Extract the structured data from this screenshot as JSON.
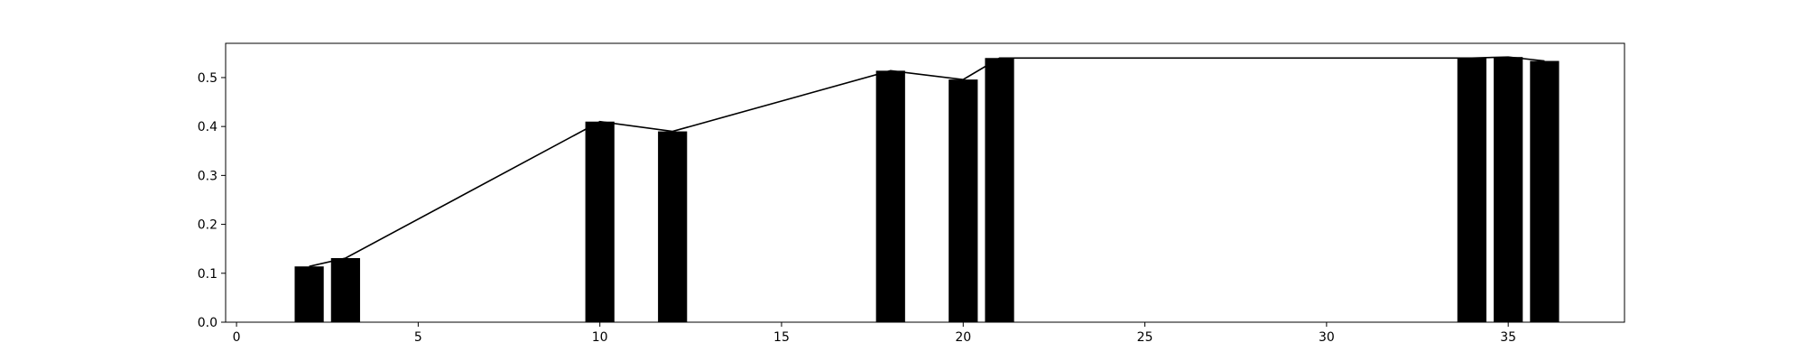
{
  "chart_data": {
    "type": "bar",
    "title": "",
    "xlabel": "",
    "ylabel": "",
    "xlim": [
      -0.3,
      38.2
    ],
    "ylim": [
      0,
      0.57
    ],
    "xticks": [
      0,
      5,
      10,
      15,
      20,
      25,
      30,
      35
    ],
    "yticks": [
      0.0,
      0.1,
      0.2,
      0.3,
      0.4,
      0.5
    ],
    "ytick_labels": [
      "0.0",
      "0.1",
      "0.2",
      "0.3",
      "0.4",
      "0.5"
    ],
    "bar_width": 0.8,
    "grid": false,
    "legend": "none",
    "bar_color": "#000000",
    "line_color": "#000000",
    "series": [
      {
        "x": [
          2,
          3,
          10,
          12,
          18,
          20,
          21,
          34,
          35,
          36
        ],
        "values": [
          0.114,
          0.131,
          0.41,
          0.39,
          0.514,
          0.496,
          0.54,
          0.54,
          0.542,
          0.534
        ]
      }
    ]
  }
}
